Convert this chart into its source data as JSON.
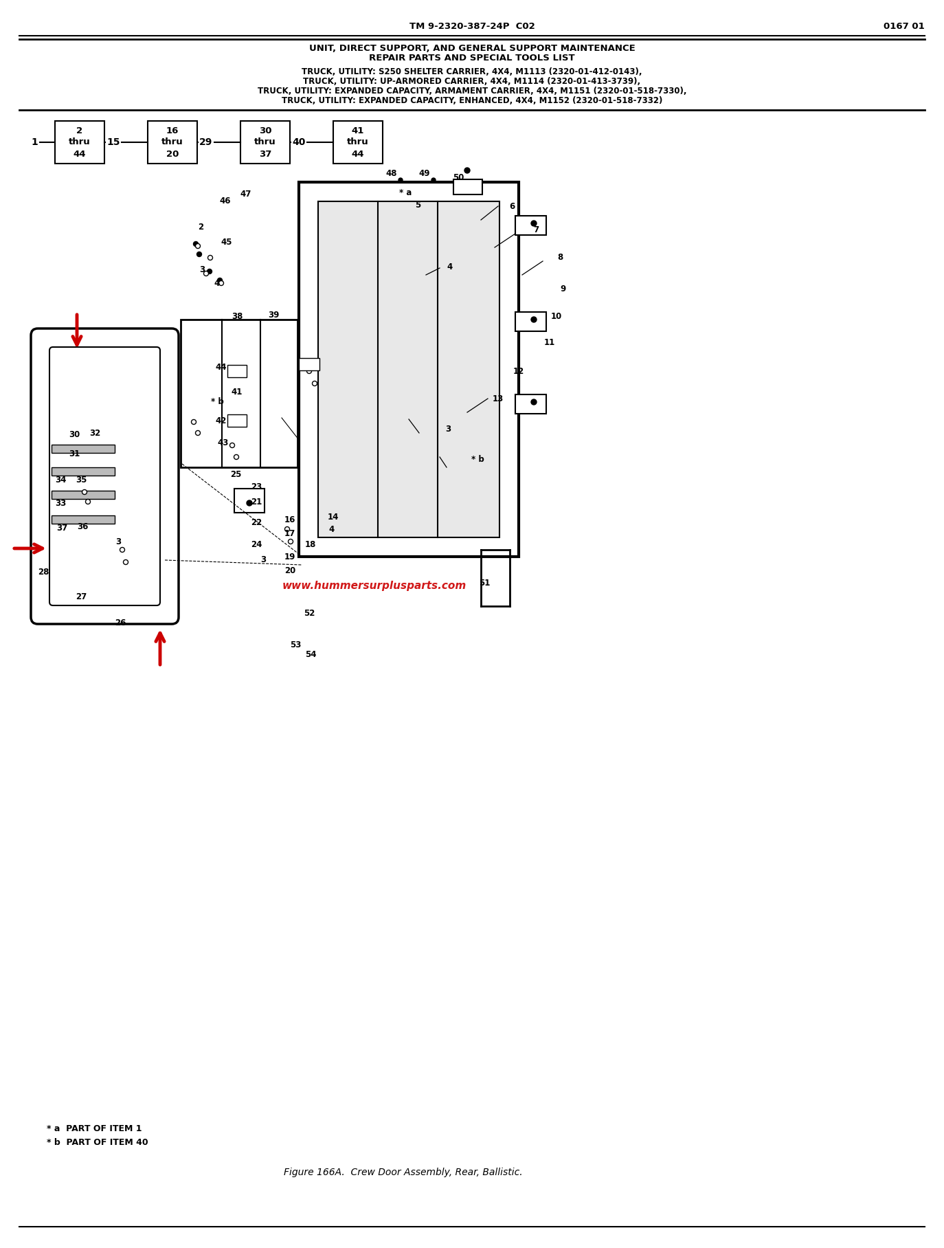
{
  "title_line1_center": "TM 9-2320-387-24P  C02",
  "title_line1_right": "0167 01",
  "title_line2": "UNIT, DIRECT SUPPORT, AND GENERAL SUPPORT MAINTENANCE",
  "title_line3": "REPAIR PARTS AND SPECIAL TOOLS LIST",
  "title_line4": "TRUCK, UTILITY: S250 SHELTER CARRIER, 4X4, M1113 (2320-01-412-0143),",
  "title_line5": "TRUCK, UTILITY: UP-ARMORED CARRIER, 4X4, M1114 (2320-01-413-3739),",
  "title_line6": "TRUCK, UTILITY: EXPANDED CAPACITY, ARMAMENT CARRIER, 4X4, M1151 (2320-01-518-7330),",
  "title_line7": "TRUCK, UTILITY: EXPANDED CAPACITY, ENHANCED, 4X4, M1152 (2320-01-518-7332)",
  "figure_caption": "Figure 166A.  Crew Door Assembly, Rear, Ballistic.",
  "note_a": "* a  PART OF ITEM 1",
  "note_b": "* b  PART OF ITEM 40",
  "watermark": "www.hummersurplusparts.com",
  "nav_boxes": [
    {
      "text": "2\nthru\n44"
    },
    {
      "text": "16\nthru\n20"
    },
    {
      "text": "30\nthru\n37"
    },
    {
      "text": "41\nthru\n44"
    }
  ],
  "nav_connectors": [
    "1",
    "15",
    "29",
    "40"
  ],
  "bg_color": "#ffffff",
  "text_color": "#000000",
  "red_color": "#cc0000"
}
